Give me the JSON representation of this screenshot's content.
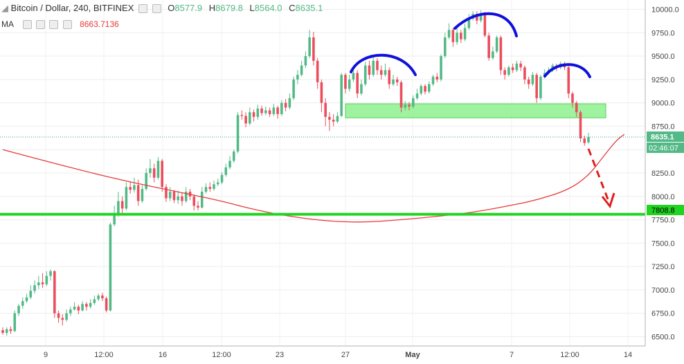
{
  "header": {
    "symbol": "Bitcoin / Dollar, 240, BITFINEX",
    "o_label": "O",
    "o_value": "8577.9",
    "h_label": "H",
    "h_value": "8679.8",
    "l_label": "L",
    "l_value": "8564.0",
    "c_label": "C",
    "c_value": "8635.1"
  },
  "indicator": {
    "label": "MA",
    "value": "8663.7136"
  },
  "colors": {
    "up": "#53b987",
    "down": "#eb4d5c",
    "ma": "#e63a3a",
    "support": "#22d422",
    "zone": "#8ff08f",
    "arcs": "#1010dd",
    "arrow": "#e01e1e"
  },
  "price_tag": {
    "price": "8635.1",
    "countdown": "02:46:07"
  },
  "support_tag": "7808.8",
  "chart_data": {
    "type": "candlestick",
    "y_ticks": [
      "10000.0",
      "9750.0",
      "9500.0",
      "9250.0",
      "9000.0",
      "8750.0",
      "8500.0",
      "8250.0",
      "8000.0",
      "7750.0",
      "7500.0",
      "7250.0",
      "7000.0",
      "6750.0",
      "6500.0"
    ],
    "x_ticks": [
      "9",
      "12:00",
      "16",
      "12:00",
      "23",
      "27",
      "May",
      "7",
      "12:00",
      "14"
    ],
    "ylim": [
      6400,
      10100
    ],
    "support_level": 7808.8,
    "resistance_zone": [
      8840,
      8990
    ],
    "last_price": 8635.1,
    "ma_value": 8663.7136,
    "ma_points": [
      [
        0,
        8500
      ],
      [
        15,
        8330
      ],
      [
        30,
        8170
      ],
      [
        45,
        8040
      ],
      [
        55,
        7950
      ],
      [
        62,
        7870
      ],
      [
        70,
        7800
      ],
      [
        80,
        7740
      ],
      [
        90,
        7720
      ],
      [
        100,
        7750
      ],
      [
        110,
        7790
      ],
      [
        118,
        7830
      ],
      [
        126,
        7890
      ],
      [
        134,
        7960
      ],
      [
        142,
        8070
      ],
      [
        147,
        8220
      ],
      [
        151,
        8440
      ],
      [
        154,
        8600
      ],
      [
        156,
        8663
      ]
    ],
    "candles": [
      [
        6570,
        6540,
        6600,
        6520
      ],
      [
        6540,
        6580,
        6600,
        6510
      ],
      [
        6580,
        6560,
        6610,
        6530
      ],
      [
        6560,
        6750,
        6780,
        6550
      ],
      [
        6750,
        6830,
        6850,
        6720
      ],
      [
        6830,
        6880,
        6920,
        6800
      ],
      [
        6880,
        6920,
        6960,
        6860
      ],
      [
        6920,
        6990,
        7050,
        6900
      ],
      [
        6990,
        7050,
        7100,
        6960
      ],
      [
        7050,
        7080,
        7150,
        7010
      ],
      [
        7080,
        7060,
        7180,
        7020
      ],
      [
        7060,
        7150,
        7200,
        7040
      ],
      [
        7150,
        7200,
        7220,
        7100
      ],
      [
        7200,
        6750,
        7210,
        6700
      ],
      [
        6750,
        6700,
        6780,
        6650
      ],
      [
        6700,
        6680,
        6740,
        6620
      ],
      [
        6680,
        6750,
        6790,
        6660
      ],
      [
        6750,
        6790,
        6820,
        6720
      ],
      [
        6790,
        6820,
        6870,
        6780
      ],
      [
        6820,
        6780,
        6840,
        6740
      ],
      [
        6780,
        6850,
        6880,
        6770
      ],
      [
        6850,
        6820,
        6870,
        6780
      ],
      [
        6820,
        6860,
        6900,
        6800
      ],
      [
        6860,
        6900,
        6940,
        6840
      ],
      [
        6900,
        6940,
        6960,
        6880
      ],
      [
        6940,
        6910,
        6970,
        6880
      ],
      [
        6910,
        6780,
        6930,
        6760
      ],
      [
        6780,
        7700,
        7720,
        6770
      ],
      [
        7700,
        7800,
        7900,
        7680
      ],
      [
        7800,
        7950,
        8050,
        7780
      ],
      [
        7950,
        7870,
        8000,
        7820
      ],
      [
        7870,
        8100,
        8150,
        7850
      ],
      [
        8100,
        8070,
        8160,
        8030
      ],
      [
        8070,
        8120,
        8200,
        8040
      ],
      [
        8120,
        7950,
        8180,
        7900
      ],
      [
        7950,
        8080,
        8120,
        7930
      ],
      [
        8080,
        8250,
        8300,
        8060
      ],
      [
        8250,
        8300,
        8400,
        8200
      ],
      [
        8300,
        8200,
        8350,
        8150
      ],
      [
        8200,
        8380,
        8420,
        8180
      ],
      [
        8380,
        8100,
        8400,
        8050
      ],
      [
        8100,
        7980,
        8130,
        7940
      ],
      [
        7980,
        8050,
        8100,
        7950
      ],
      [
        8050,
        7960,
        8070,
        7930
      ],
      [
        7960,
        8000,
        8060,
        7920
      ],
      [
        8000,
        7950,
        8040,
        7900
      ],
      [
        7950,
        8050,
        8100,
        7930
      ],
      [
        8050,
        8000,
        8080,
        7960
      ],
      [
        8000,
        7900,
        8020,
        7850
      ],
      [
        7900,
        7880,
        7950,
        7850
      ],
      [
        7880,
        8050,
        8100,
        7870
      ],
      [
        8050,
        8100,
        8140,
        8030
      ],
      [
        8100,
        8080,
        8150,
        8050
      ],
      [
        8080,
        8130,
        8170,
        8060
      ],
      [
        8130,
        8150,
        8190,
        8110
      ],
      [
        8150,
        8230,
        8260,
        8130
      ],
      [
        8230,
        8310,
        8350,
        8210
      ],
      [
        8310,
        8380,
        8430,
        8290
      ],
      [
        8380,
        8480,
        8500,
        8360
      ],
      [
        8480,
        8870,
        8900,
        8460
      ],
      [
        8870,
        8860,
        8920,
        8820
      ],
      [
        8860,
        8780,
        8900,
        8740
      ],
      [
        8780,
        8900,
        8950,
        8760
      ],
      [
        8900,
        8850,
        8930,
        8800
      ],
      [
        8850,
        8940,
        8980,
        8820
      ],
      [
        8940,
        8890,
        8970,
        8860
      ],
      [
        8890,
        8920,
        8960,
        8870
      ],
      [
        8920,
        8880,
        8950,
        8850
      ],
      [
        8880,
        8950,
        8990,
        8860
      ],
      [
        8950,
        8880,
        8970,
        8830
      ],
      [
        8880,
        9000,
        9030,
        8860
      ],
      [
        9000,
        8950,
        9040,
        8910
      ],
      [
        8950,
        9050,
        9100,
        8930
      ],
      [
        9050,
        9250,
        9280,
        9030
      ],
      [
        9250,
        9300,
        9350,
        9200
      ],
      [
        9300,
        9400,
        9450,
        9280
      ],
      [
        9400,
        9500,
        9550,
        9370
      ],
      [
        9500,
        9700,
        9780,
        9480
      ],
      [
        9700,
        9450,
        9760,
        9400
      ],
      [
        9450,
        9220,
        9480,
        9150
      ],
      [
        9220,
        9000,
        9250,
        8900
      ],
      [
        9000,
        8850,
        9050,
        8750
      ],
      [
        8850,
        8820,
        8900,
        8700
      ],
      [
        8820,
        8800,
        8880,
        8750
      ],
      [
        8800,
        8860,
        8900,
        8780
      ],
      [
        8860,
        9300,
        9320,
        8850
      ],
      [
        9300,
        9150,
        9320,
        9100
      ],
      [
        9150,
        9250,
        9300,
        9120
      ],
      [
        9250,
        9320,
        9380,
        9220
      ],
      [
        9320,
        9100,
        9350,
        9050
      ],
      [
        9100,
        9200,
        9250,
        9080
      ],
      [
        9200,
        9400,
        9440,
        9180
      ],
      [
        9400,
        9300,
        9450,
        9250
      ],
      [
        9300,
        9450,
        9500,
        9280
      ],
      [
        9450,
        9350,
        9480,
        9300
      ],
      [
        9350,
        9300,
        9400,
        9250
      ],
      [
        9300,
        9350,
        9420,
        9280
      ],
      [
        9350,
        9200,
        9380,
        9150
      ],
      [
        9200,
        9250,
        9300,
        9180
      ],
      [
        9250,
        9220,
        9280,
        9180
      ],
      [
        9220,
        8950,
        9240,
        8900
      ],
      [
        8950,
        8980,
        9020,
        8920
      ],
      [
        8980,
        8960,
        9010,
        8920
      ],
      [
        8960,
        9050,
        9080,
        8940
      ],
      [
        9050,
        9100,
        9150,
        9030
      ],
      [
        9100,
        9180,
        9200,
        9080
      ],
      [
        9180,
        9120,
        9200,
        9090
      ],
      [
        9120,
        9200,
        9230,
        9100
      ],
      [
        9200,
        9280,
        9300,
        9180
      ],
      [
        9280,
        9250,
        9320,
        9220
      ],
      [
        9250,
        9500,
        9520,
        9230
      ],
      [
        9500,
        9700,
        9750,
        9480
      ],
      [
        9700,
        9780,
        9850,
        9680
      ],
      [
        9780,
        9650,
        9800,
        9600
      ],
      [
        9650,
        9750,
        9800,
        9620
      ],
      [
        9750,
        9680,
        9780,
        9640
      ],
      [
        9680,
        9800,
        9850,
        9660
      ],
      [
        9800,
        9900,
        9950,
        9780
      ],
      [
        9900,
        9950,
        9980,
        9880
      ],
      [
        9950,
        9880,
        9980,
        9840
      ],
      [
        9880,
        9950,
        9990,
        9860
      ],
      [
        9950,
        9720,
        9970,
        9700
      ],
      [
        9720,
        9480,
        9750,
        9450
      ],
      [
        9480,
        9550,
        9600,
        9460
      ],
      [
        9550,
        9700,
        9720,
        9530
      ],
      [
        9700,
        9350,
        9720,
        9300
      ],
      [
        9350,
        9300,
        9380,
        9250
      ],
      [
        9300,
        9380,
        9400,
        9280
      ],
      [
        9380,
        9350,
        9420,
        9320
      ],
      [
        9350,
        9420,
        9450,
        9330
      ],
      [
        9420,
        9380,
        9450,
        9340
      ],
      [
        9380,
        9250,
        9400,
        9200
      ],
      [
        9250,
        9200,
        9280,
        9150
      ],
      [
        9200,
        9300,
        9330,
        9180
      ],
      [
        9300,
        9050,
        9320,
        9000
      ],
      [
        9050,
        9280,
        9300,
        9030
      ],
      [
        9280,
        9320,
        9360,
        9260
      ],
      [
        9320,
        9350,
        9380,
        9300
      ],
      [
        9350,
        9400,
        9420,
        9330
      ],
      [
        9400,
        9380,
        9420,
        9340
      ],
      [
        9380,
        9420,
        9440,
        9360
      ],
      [
        9420,
        9380,
        9440,
        9350
      ],
      [
        9380,
        9100,
        9400,
        9050
      ],
      [
        9100,
        9000,
        9120,
        8950
      ],
      [
        9000,
        8900,
        9020,
        8850
      ],
      [
        8900,
        8620,
        8920,
        8580
      ],
      [
        8620,
        8570,
        8650,
        8540
      ],
      [
        8577.9,
        8635.1,
        8679.8,
        8564.0
      ]
    ]
  }
}
